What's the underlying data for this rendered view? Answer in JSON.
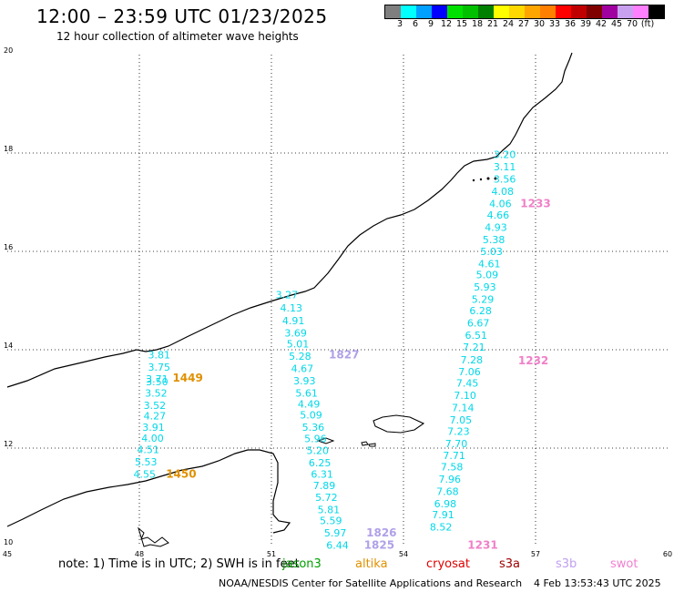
{
  "header": {
    "title": "12:00 – 23:59 UTC 01/23/2025",
    "subtitle": "12 hour collection of altimeter wave heights"
  },
  "colorbar": {
    "colors": [
      "#7f7f7f",
      "#00ffff",
      "#00a0ff",
      "#0000ff",
      "#00e000",
      "#00c000",
      "#008000",
      "#ffff00",
      "#ffd800",
      "#ffa500",
      "#ff7f00",
      "#ff0000",
      "#c00000",
      "#800000",
      "#a000a0",
      "#c8a0f0",
      "#ff80ff",
      "#000000"
    ],
    "labels": [
      "3",
      "6",
      "9",
      "12",
      "15",
      "18",
      "21",
      "24",
      "27",
      "30",
      "33",
      "36",
      "39",
      "42",
      "45",
      "70",
      "(ft)"
    ]
  },
  "axes": {
    "x_ticks": [
      "45",
      "48",
      "51",
      "54",
      "57",
      "60"
    ],
    "y_ticks": [
      "20",
      "18",
      "16",
      "14",
      "12",
      "10"
    ],
    "lon_range": [
      45,
      60
    ],
    "lat_range": [
      10,
      20
    ]
  },
  "chart_data": {
    "type": "map",
    "tracks": [
      {
        "name": "1449",
        "label_color": "#e09000",
        "point_color": "#00d8e8",
        "points": [
          {
            "lat": 13.82,
            "lon": 48.45,
            "v": "3.81"
          },
          {
            "lat": 13.57,
            "lon": 48.45,
            "v": "3.75"
          },
          {
            "lat": 13.33,
            "lon": 48.4,
            "v": "3.71"
          },
          {
            "lat": 13.28,
            "lon": 48.4,
            "v": "3.50"
          },
          {
            "lat": 13.05,
            "lon": 48.38,
            "v": "3.52"
          },
          {
            "lat": 12.8,
            "lon": 48.35,
            "v": "3.52"
          },
          {
            "lat": 12.58,
            "lon": 48.35,
            "v": "4.27"
          },
          {
            "lat": 12.35,
            "lon": 48.32,
            "v": "3.91"
          },
          {
            "lat": 12.13,
            "lon": 48.3,
            "v": "4.00"
          },
          {
            "lat": 11.9,
            "lon": 48.2,
            "v": "4.51"
          },
          {
            "lat": 11.65,
            "lon": 48.15,
            "v": "5.53"
          },
          {
            "lat": 11.4,
            "lon": 48.12,
            "v": "4.55"
          }
        ],
        "labels": [
          {
            "text": "1449",
            "lat": 13.35,
            "lon": 49.1
          },
          {
            "text": "1450",
            "lat": 11.4,
            "lon": 48.95
          }
        ]
      },
      {
        "name": "1827",
        "label_color": "#b0a0e8",
        "point_color": "#00d8e8",
        "points": [
          {
            "lat": 15.05,
            "lon": 51.35,
            "v": "3.27"
          },
          {
            "lat": 14.78,
            "lon": 51.45,
            "v": "4.13"
          },
          {
            "lat": 14.52,
            "lon": 51.5,
            "v": "4.91"
          },
          {
            "lat": 14.27,
            "lon": 51.55,
            "v": "3.69"
          },
          {
            "lat": 14.05,
            "lon": 51.6,
            "v": "5.01"
          },
          {
            "lat": 13.8,
            "lon": 51.65,
            "v": "5.28"
          },
          {
            "lat": 13.55,
            "lon": 51.7,
            "v": "4.67"
          },
          {
            "lat": 13.3,
            "lon": 51.75,
            "v": "3.93"
          },
          {
            "lat": 13.05,
            "lon": 51.8,
            "v": "5.61"
          },
          {
            "lat": 12.82,
            "lon": 51.85,
            "v": "4.49"
          },
          {
            "lat": 12.6,
            "lon": 51.9,
            "v": "5.09"
          },
          {
            "lat": 12.35,
            "lon": 51.95,
            "v": "5.36"
          },
          {
            "lat": 12.12,
            "lon": 52.0,
            "v": "5.96"
          },
          {
            "lat": 11.88,
            "lon": 52.05,
            "v": "5.20"
          },
          {
            "lat": 11.63,
            "lon": 52.1,
            "v": "6.25"
          },
          {
            "lat": 11.4,
            "lon": 52.15,
            "v": "6.31"
          },
          {
            "lat": 11.17,
            "lon": 52.2,
            "v": "7.89"
          },
          {
            "lat": 10.93,
            "lon": 52.25,
            "v": "5.72"
          },
          {
            "lat": 10.68,
            "lon": 52.3,
            "v": "5.81"
          },
          {
            "lat": 10.45,
            "lon": 52.35,
            "v": "5.59"
          },
          {
            "lat": 10.2,
            "lon": 52.45,
            "v": "5.97"
          },
          {
            "lat": 9.95,
            "lon": 52.5,
            "v": "6.44"
          }
        ],
        "labels": [
          {
            "text": "1827",
            "lat": 13.82,
            "lon": 52.65
          },
          {
            "text": "1826",
            "lat": 10.2,
            "lon": 53.5
          },
          {
            "text": "1825",
            "lat": 9.95,
            "lon": 53.45
          }
        ]
      },
      {
        "name": "1233",
        "label_color": "#f080c8",
        "point_color": "#00d8e8",
        "points": [
          {
            "lat": 17.9,
            "lon": 56.3,
            "v": "3.20"
          },
          {
            "lat": 17.65,
            "lon": 56.3,
            "v": "3.11"
          },
          {
            "lat": 17.4,
            "lon": 56.3,
            "v": "3.56"
          },
          {
            "lat": 17.15,
            "lon": 56.25,
            "v": "4.08"
          },
          {
            "lat": 16.9,
            "lon": 56.2,
            "v": "4.06"
          },
          {
            "lat": 16.67,
            "lon": 56.15,
            "v": "4.66"
          },
          {
            "lat": 16.42,
            "lon": 56.1,
            "v": "4.93"
          },
          {
            "lat": 16.17,
            "lon": 56.05,
            "v": "5.38"
          },
          {
            "lat": 15.93,
            "lon": 56.0,
            "v": "5.03"
          },
          {
            "lat": 15.68,
            "lon": 55.95,
            "v": "4.61"
          },
          {
            "lat": 15.45,
            "lon": 55.9,
            "v": "5.09"
          },
          {
            "lat": 15.2,
            "lon": 55.85,
            "v": "5.93"
          },
          {
            "lat": 14.95,
            "lon": 55.8,
            "v": "5.29"
          },
          {
            "lat": 14.72,
            "lon": 55.75,
            "v": "6.28"
          },
          {
            "lat": 14.47,
            "lon": 55.7,
            "v": "6.67"
          },
          {
            "lat": 14.22,
            "lon": 55.65,
            "v": "6.51"
          },
          {
            "lat": 13.98,
            "lon": 55.6,
            "v": "7.21"
          },
          {
            "lat": 13.72,
            "lon": 55.55,
            "v": "7.28"
          },
          {
            "lat": 13.48,
            "lon": 55.5,
            "v": "7.06"
          },
          {
            "lat": 13.25,
            "lon": 55.45,
            "v": "7.45"
          },
          {
            "lat": 13.0,
            "lon": 55.4,
            "v": "7.10"
          },
          {
            "lat": 12.75,
            "lon": 55.35,
            "v": "7.14"
          },
          {
            "lat": 12.5,
            "lon": 55.3,
            "v": "7.05"
          },
          {
            "lat": 12.27,
            "lon": 55.25,
            "v": "7.23"
          },
          {
            "lat": 12.02,
            "lon": 55.2,
            "v": "7.70"
          },
          {
            "lat": 11.78,
            "lon": 55.15,
            "v": "7.71"
          },
          {
            "lat": 11.55,
            "lon": 55.1,
            "v": "7.58"
          },
          {
            "lat": 11.3,
            "lon": 55.05,
            "v": "7.96"
          },
          {
            "lat": 11.05,
            "lon": 55.0,
            "v": "7.68"
          },
          {
            "lat": 10.8,
            "lon": 54.95,
            "v": "6.98"
          },
          {
            "lat": 10.57,
            "lon": 54.9,
            "v": "7.91"
          },
          {
            "lat": 10.32,
            "lon": 54.85,
            "v": "8.52"
          }
        ],
        "labels": [
          {
            "text": "1233",
            "lat": 16.9,
            "lon": 57.0
          },
          {
            "text": "1232",
            "lat": 13.7,
            "lon": 56.95
          },
          {
            "text": "1231",
            "lat": 9.95,
            "lon": 55.8
          }
        ]
      }
    ]
  },
  "footer": {
    "note": "note:  1) Time is in UTC; 2) SWH is in feet",
    "satellites": [
      {
        "name": "jason3",
        "color": "#00a000"
      },
      {
        "name": "altika",
        "color": "#e09000"
      },
      {
        "name": "cryosat",
        "color": "#e00000"
      },
      {
        "name": "s3a",
        "color": "#a00000"
      },
      {
        "name": "s3b",
        "color": "#c0a0f0"
      },
      {
        "name": "swot",
        "color": "#f080d0"
      }
    ],
    "credit": "NOAA/NESDIS Center for Satellite Applications and Research",
    "timestamp": "4 Feb 13:53:43 UTC 2025"
  }
}
